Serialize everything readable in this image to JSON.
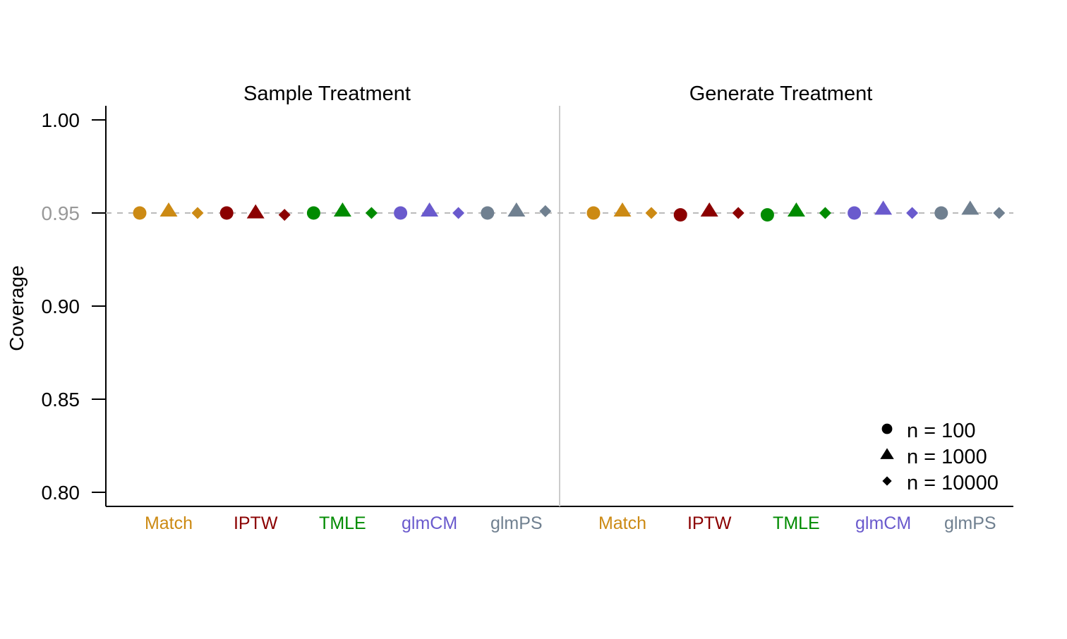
{
  "chart_data": {
    "type": "scatter",
    "ylabel": "Coverage",
    "ylim": [
      0.8,
      1.0
    ],
    "yticks": [
      {
        "value": 0.8,
        "label": "0.80"
      },
      {
        "value": 0.85,
        "label": "0.85"
      },
      {
        "value": 0.9,
        "label": "0.90"
      },
      {
        "value": 0.95,
        "label": "0.95",
        "muted": true
      },
      {
        "value": 1.0,
        "label": "1.00"
      }
    ],
    "reference_line": {
      "value": 0.95,
      "style": "dashed",
      "color": "#bbbbbb"
    },
    "grid": false,
    "legend_position": "bottom-right",
    "legend": [
      {
        "label": "n = 100",
        "shape": "circle"
      },
      {
        "label": "n = 1000",
        "shape": "triangle"
      },
      {
        "label": "n = 10000",
        "shape": "diamond"
      }
    ],
    "methods": [
      {
        "name": "Match",
        "color": "#cc8a14"
      },
      {
        "name": "IPTW",
        "color": "#8b0000"
      },
      {
        "name": "TMLE",
        "color": "#008b00"
      },
      {
        "name": "glmCM",
        "color": "#6a5acd"
      },
      {
        "name": "glmPS",
        "color": "#708090"
      }
    ],
    "panels": [
      {
        "title": "Sample Treatment",
        "values": {
          "Match": [
            0.95,
            0.951,
            0.95
          ],
          "IPTW": [
            0.95,
            0.95,
            0.949
          ],
          "TMLE": [
            0.95,
            0.951,
            0.95
          ],
          "glmCM": [
            0.95,
            0.951,
            0.95
          ],
          "glmPS": [
            0.95,
            0.951,
            0.951
          ]
        }
      },
      {
        "title": "Generate Treatment",
        "values": {
          "Match": [
            0.95,
            0.951,
            0.95
          ],
          "IPTW": [
            0.949,
            0.951,
            0.95
          ],
          "TMLE": [
            0.949,
            0.951,
            0.95
          ],
          "glmCM": [
            0.95,
            0.952,
            0.95
          ],
          "glmPS": [
            0.95,
            0.952,
            0.95
          ]
        }
      }
    ]
  }
}
